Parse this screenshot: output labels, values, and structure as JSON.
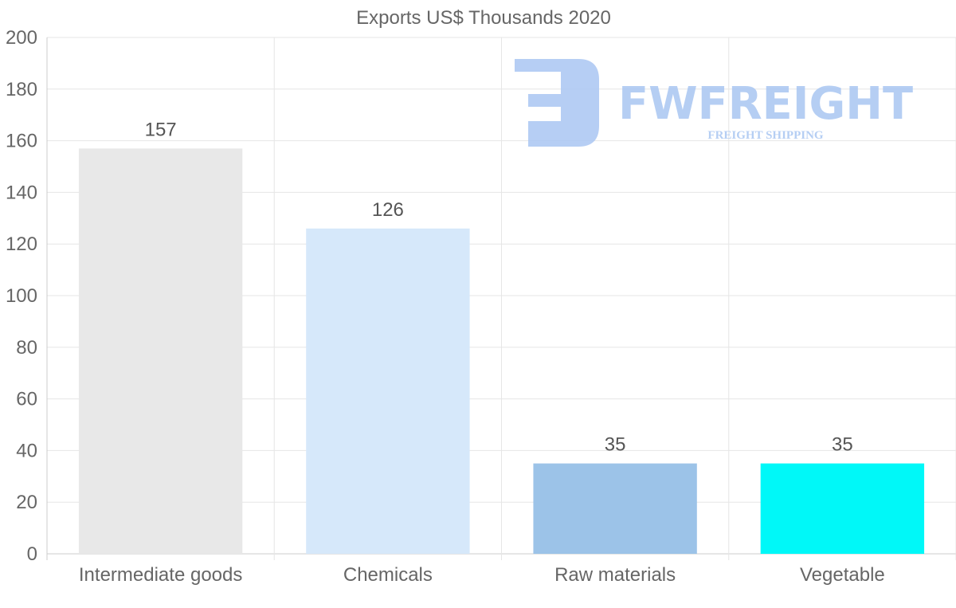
{
  "chart_data": {
    "type": "bar",
    "title": "Exports US$ Thousands 2020",
    "categories": [
      "Intermediate goods",
      "Chemicals",
      "Raw materials",
      "Vegetable"
    ],
    "values": [
      157,
      126,
      35,
      35
    ],
    "colors": [
      "#e8e8e8",
      "#d6e8fa",
      "#9cc3e8",
      "#00f8f8"
    ],
    "xlabel": "",
    "ylabel": "",
    "ylim": [
      0,
      200
    ],
    "yticks": [
      0,
      20,
      40,
      60,
      80,
      100,
      120,
      140,
      160,
      180,
      200
    ],
    "grid": true,
    "data_labels": true
  },
  "watermark": {
    "brand": "FWFREIGHT",
    "tagline": "FREIGHT SHIPPING",
    "color": "#a9c6f2"
  }
}
